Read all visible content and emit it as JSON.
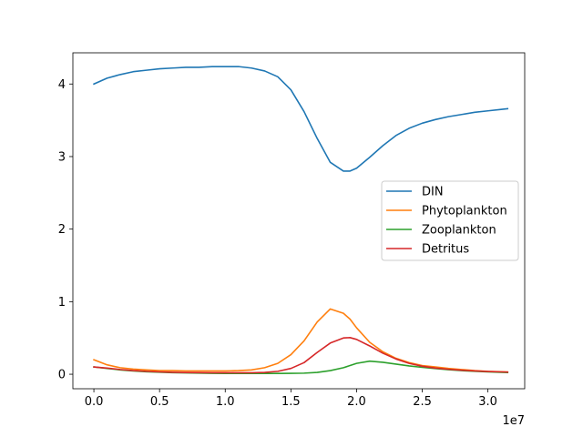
{
  "chart_data": {
    "type": "line",
    "title": "",
    "xlabel": "",
    "ylabel": "",
    "x_offset_text": "1e7",
    "xlim": [
      -0.16,
      3.28
    ],
    "ylim": [
      -0.2,
      4.43
    ],
    "x_ticks": [
      0,
      0.5,
      1.0,
      1.5,
      2.0,
      2.5,
      3.0
    ],
    "x_tick_labels": [
      "0.0",
      "0.5",
      "1.0",
      "1.5",
      "2.0",
      "2.5",
      "3.0"
    ],
    "y_ticks": [
      0,
      1,
      2,
      3,
      4
    ],
    "y_tick_labels": [
      "0",
      "1",
      "2",
      "3",
      "4"
    ],
    "legend_position": "center-right",
    "grid": false,
    "x": [
      0.0,
      0.1,
      0.2,
      0.3,
      0.4,
      0.5,
      0.6,
      0.7,
      0.8,
      0.9,
      1.0,
      1.1,
      1.2,
      1.3,
      1.4,
      1.5,
      1.6,
      1.7,
      1.8,
      1.9,
      1.95,
      2.0,
      2.1,
      2.2,
      2.3,
      2.4,
      2.5,
      2.6,
      2.7,
      2.8,
      2.9,
      3.0,
      3.1,
      3.15
    ],
    "series": [
      {
        "name": "DIN",
        "color": "#1f77b4",
        "values": [
          4.0,
          4.08,
          4.13,
          4.17,
          4.19,
          4.21,
          4.22,
          4.23,
          4.23,
          4.24,
          4.24,
          4.24,
          4.22,
          4.18,
          4.1,
          3.92,
          3.62,
          3.25,
          2.92,
          2.8,
          2.8,
          2.84,
          2.99,
          3.15,
          3.29,
          3.39,
          3.46,
          3.51,
          3.55,
          3.58,
          3.61,
          3.63,
          3.65,
          3.66
        ]
      },
      {
        "name": "Phytoplankton",
        "color": "#ff7f0e",
        "values": [
          0.2,
          0.13,
          0.09,
          0.07,
          0.06,
          0.05,
          0.05,
          0.045,
          0.045,
          0.045,
          0.045,
          0.05,
          0.06,
          0.09,
          0.15,
          0.27,
          0.46,
          0.72,
          0.9,
          0.84,
          0.76,
          0.64,
          0.44,
          0.31,
          0.22,
          0.16,
          0.12,
          0.1,
          0.08,
          0.065,
          0.05,
          0.04,
          0.035,
          0.03
        ]
      },
      {
        "name": "Zooplankton",
        "color": "#2ca02c",
        "values": [
          0.1,
          0.08,
          0.06,
          0.045,
          0.035,
          0.028,
          0.022,
          0.018,
          0.015,
          0.012,
          0.011,
          0.01,
          0.01,
          0.01,
          0.011,
          0.012,
          0.015,
          0.025,
          0.05,
          0.09,
          0.12,
          0.15,
          0.18,
          0.165,
          0.14,
          0.115,
          0.095,
          0.078,
          0.062,
          0.05,
          0.04,
          0.032,
          0.026,
          0.023
        ]
      },
      {
        "name": "Detritus",
        "color": "#d62728",
        "values": [
          0.1,
          0.085,
          0.065,
          0.05,
          0.04,
          0.032,
          0.027,
          0.024,
          0.022,
          0.021,
          0.02,
          0.02,
          0.02,
          0.025,
          0.04,
          0.08,
          0.16,
          0.3,
          0.43,
          0.5,
          0.505,
          0.48,
          0.39,
          0.29,
          0.21,
          0.15,
          0.11,
          0.085,
          0.068,
          0.055,
          0.045,
          0.038,
          0.032,
          0.03
        ]
      }
    ]
  }
}
